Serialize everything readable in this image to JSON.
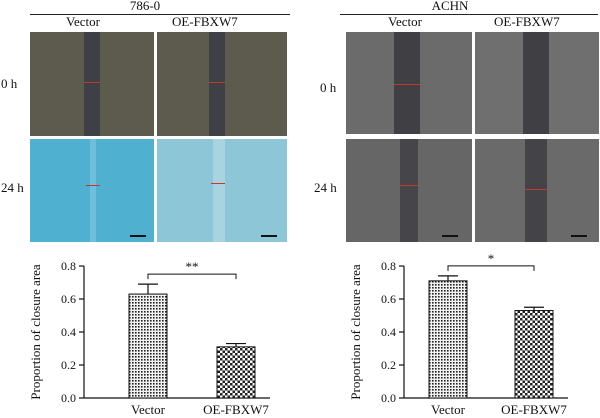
{
  "panels": [
    {
      "cell_line": "786-0",
      "columns": [
        "Vector",
        "OE-FBXW7"
      ],
      "rows": [
        "0 h",
        "24 h"
      ]
    },
    {
      "cell_line": "ACHN",
      "columns": [
        "Vector",
        "OE-FBXW7"
      ],
      "rows": [
        "0 h",
        "24 h"
      ]
    }
  ],
  "colors": {
    "micro_0h": "#5d5a4e",
    "micro_24h_786": "#4fb0cf",
    "micro_achn": "#6b6b6b",
    "bar_fill": "#e6e6e6",
    "axis": "#111111"
  },
  "chart_data": [
    {
      "type": "bar",
      "categories": [
        "Vector",
        "OE-FBXW7"
      ],
      "values": [
        0.63,
        0.31
      ],
      "errors": [
        0.06,
        0.02
      ],
      "ylabel": "Proportion of closure area",
      "xlabel": "",
      "ylim": [
        0,
        0.8
      ],
      "yticks": [
        "0.0",
        "0.2",
        "0.4",
        "0.6",
        "0.8"
      ],
      "significance": "**",
      "legend": "none",
      "grid": false
    },
    {
      "type": "bar",
      "categories": [
        "Vector",
        "OE-FBXW7"
      ],
      "values": [
        0.71,
        0.53
      ],
      "errors": [
        0.03,
        0.02
      ],
      "ylabel": "Proportion of closure area",
      "xlabel": "",
      "ylim": [
        0,
        0.8
      ],
      "yticks": [
        "0.0",
        "0.2",
        "0.4",
        "0.6",
        "0.8"
      ],
      "significance": "*",
      "legend": "none",
      "grid": false
    }
  ]
}
